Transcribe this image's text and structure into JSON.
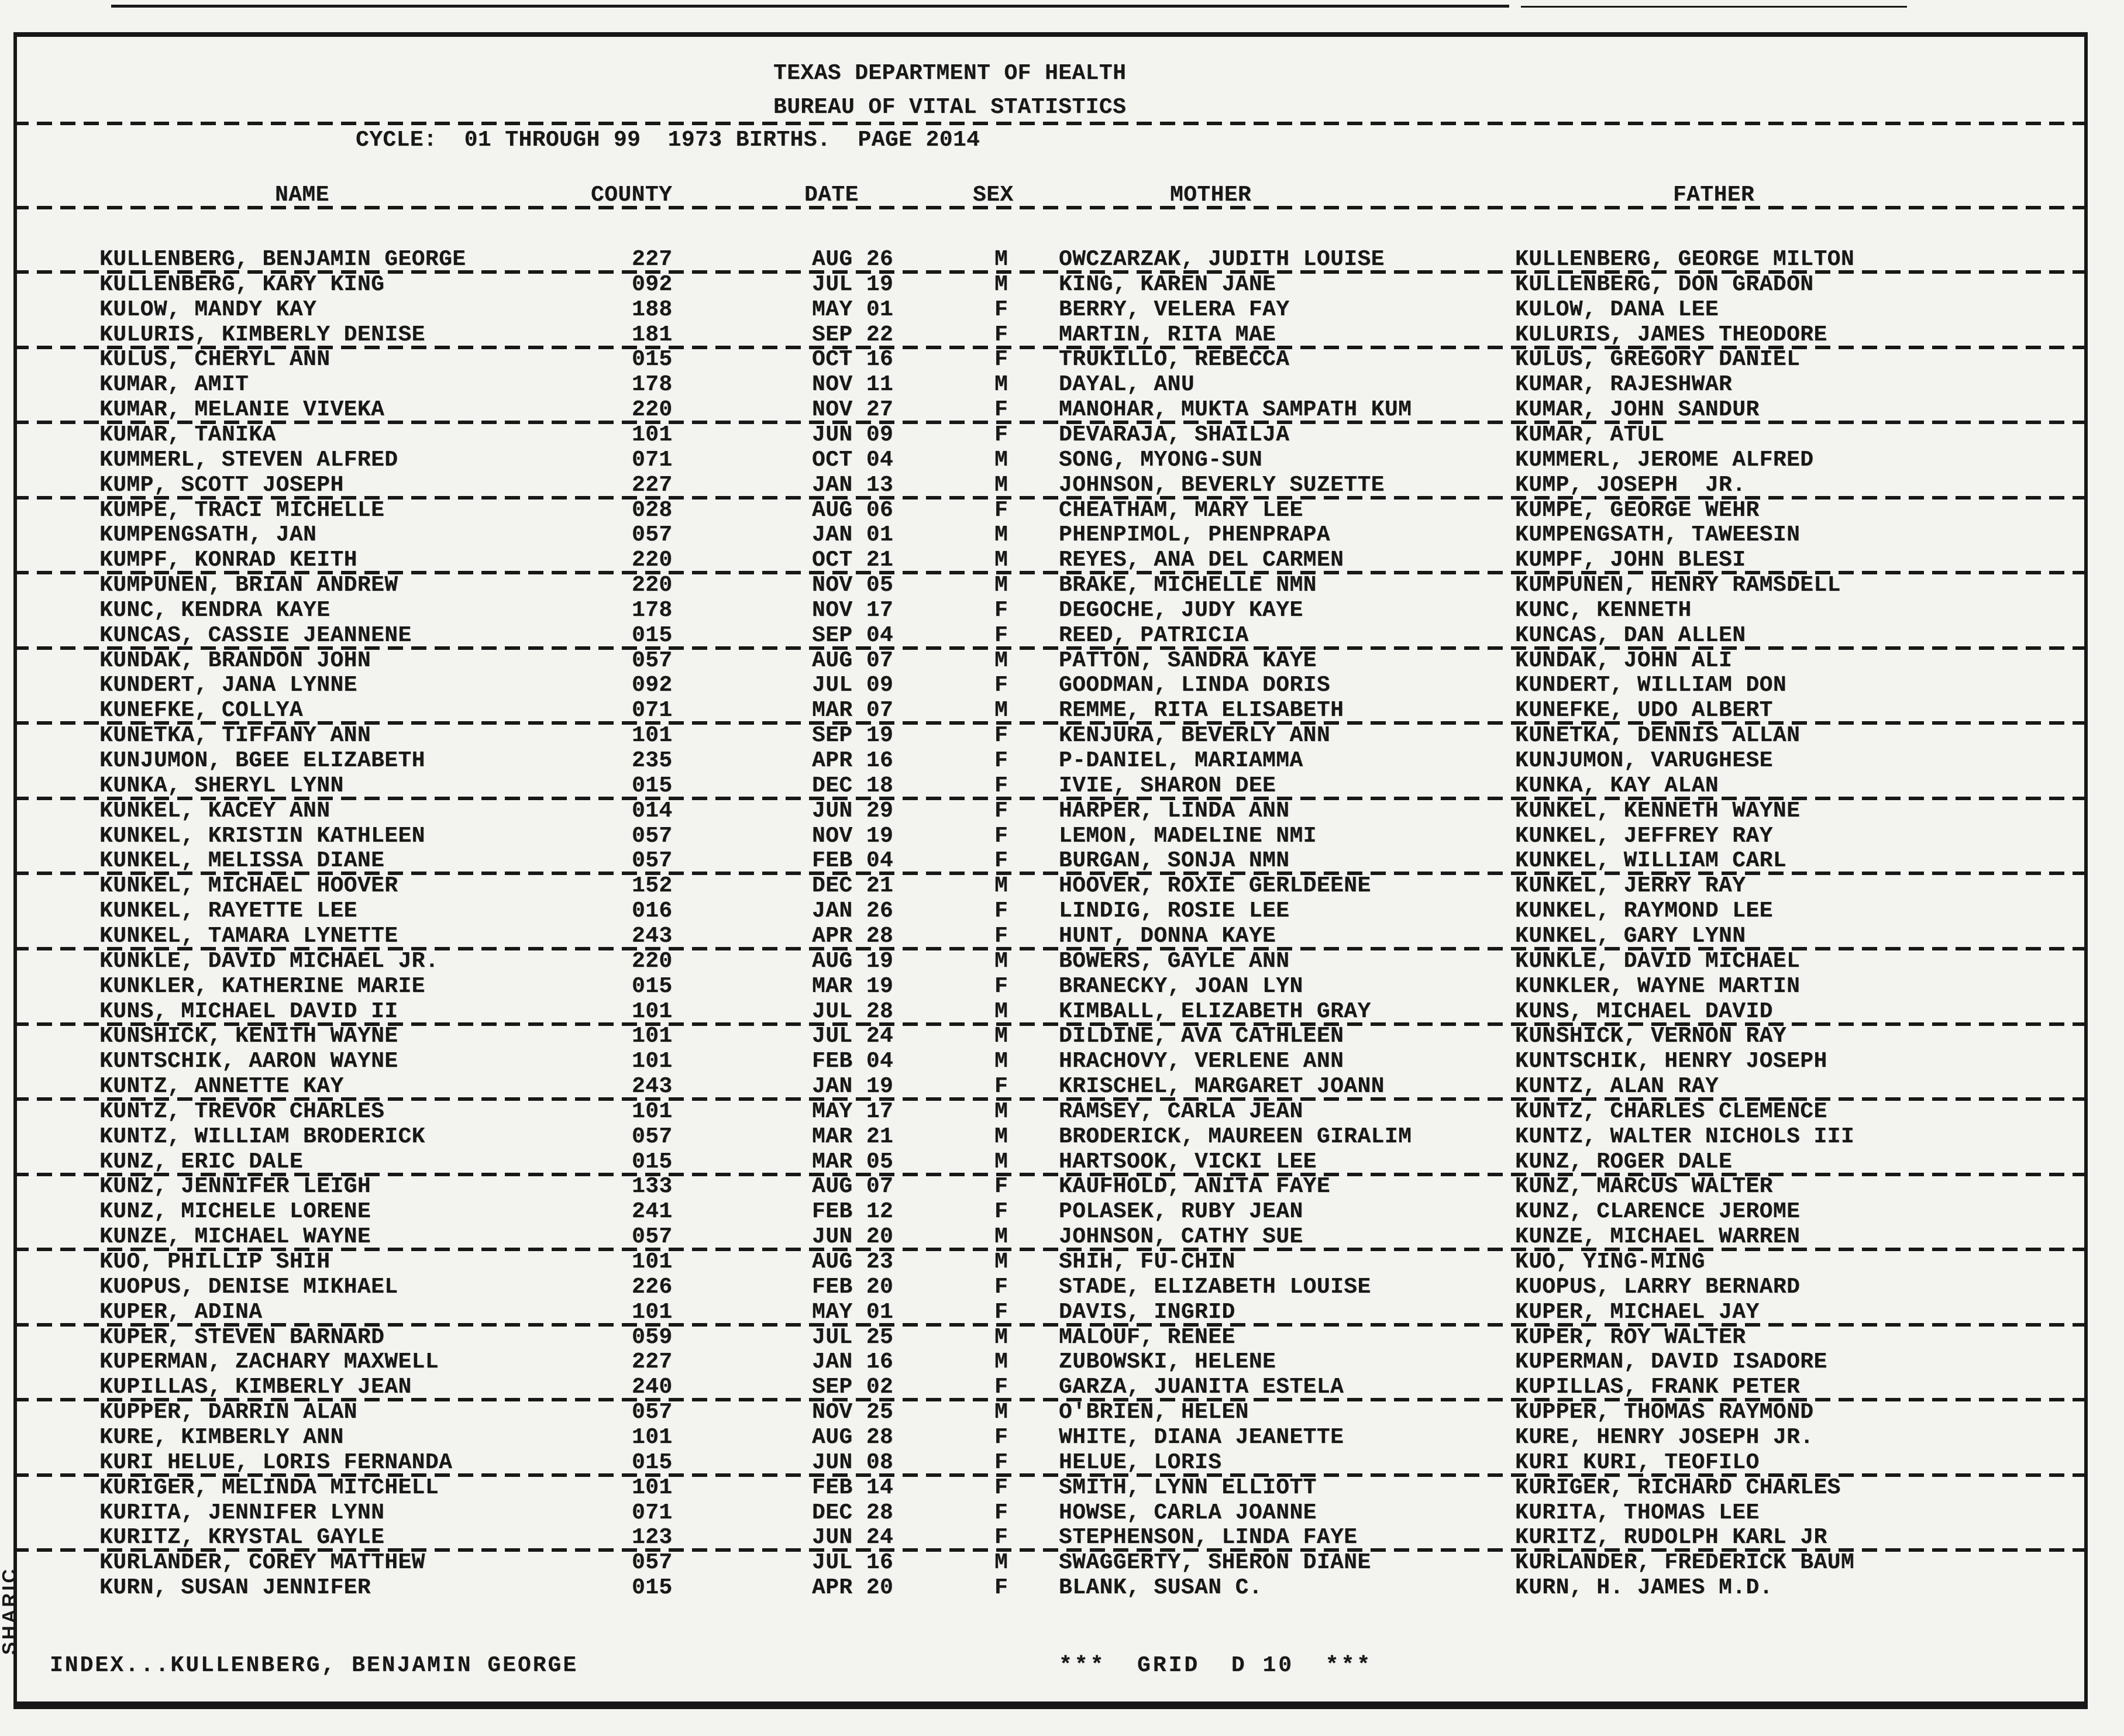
{
  "title_block": {
    "agency": "TEXAS DEPARTMENT OF HEALTH",
    "bureau": "BUREAU OF VITAL STATISTICS",
    "cycle_line": "CYCLE:  01 THROUGH 99  1973 BIRTHS.  PAGE 2014"
  },
  "columns": [
    "NAME",
    "COUNTY",
    "DATE",
    "SEX",
    "MOTHER",
    "FATHER"
  ],
  "table": {
    "rows": [
      {
        "name": "KULLENBERG, BENJAMIN GEORGE",
        "county": "227",
        "date": "AUG 26",
        "sex": "M",
        "mother": "OWCZARZAK, JUDITH LOUISE",
        "father": "KULLENBERG, GEORGE MILTON"
      },
      {
        "name": "KULLENBERG, KARY KING",
        "county": "092",
        "date": "JUL 19",
        "sex": "M",
        "mother": "KING, KAREN JANE",
        "father": "KULLENBERG, DON GRADON"
      },
      {
        "name": "KULOW, MANDY KAY",
        "county": "188",
        "date": "MAY 01",
        "sex": "F",
        "mother": "BERRY, VELERA FAY",
        "father": "KULOW, DANA LEE"
      },
      {
        "name": "KULURIS, KIMBERLY DENISE",
        "county": "181",
        "date": "SEP 22",
        "sex": "F",
        "mother": "MARTIN, RITA MAE",
        "father": "KULURIS, JAMES THEODORE"
      },
      {
        "name": "KULUS, CHERYL ANN",
        "county": "015",
        "date": "OCT 16",
        "sex": "F",
        "mother": "TRUKILLO, REBECCA",
        "father": "KULUS, GREGORY DANIEL"
      },
      {
        "name": "KUMAR, AMIT",
        "county": "178",
        "date": "NOV 11",
        "sex": "M",
        "mother": "DAYAL, ANU",
        "father": "KUMAR, RAJESHWAR"
      },
      {
        "name": "KUMAR, MELANIE VIVEKA",
        "county": "220",
        "date": "NOV 27",
        "sex": "F",
        "mother": "MANOHAR, MUKTA SAMPATH KUM",
        "father": "KUMAR, JOHN SANDUR"
      },
      {
        "name": "KUMAR, TANIKA",
        "county": "101",
        "date": "JUN 09",
        "sex": "F",
        "mother": "DEVARAJA, SHAILJA",
        "father": "KUMAR, ATUL"
      },
      {
        "name": "KUMMERL, STEVEN ALFRED",
        "county": "071",
        "date": "OCT 04",
        "sex": "M",
        "mother": "SONG, MYONG-SUN",
        "father": "KUMMERL, JEROME ALFRED"
      },
      {
        "name": "KUMP, SCOTT JOSEPH",
        "county": "227",
        "date": "JAN 13",
        "sex": "M",
        "mother": "JOHNSON, BEVERLY SUZETTE",
        "father": "KUMP, JOSEPH  JR."
      },
      {
        "name": "KUMPE, TRACI MICHELLE",
        "county": "028",
        "date": "AUG 06",
        "sex": "F",
        "mother": "CHEATHAM, MARY LEE",
        "father": "KUMPE, GEORGE WEHR"
      },
      {
        "name": "KUMPENGSATH, JAN",
        "county": "057",
        "date": "JAN 01",
        "sex": "M",
        "mother": "PHENPIMOL, PHENPRAPA",
        "father": "KUMPENGSATH, TAWEESIN"
      },
      {
        "name": "KUMPF, KONRAD KEITH",
        "county": "220",
        "date": "OCT 21",
        "sex": "M",
        "mother": "REYES, ANA DEL CARMEN",
        "father": "KUMPF, JOHN BLESI"
      },
      {
        "name": "KUMPUNEN, BRIAN ANDREW",
        "county": "220",
        "date": "NOV 05",
        "sex": "M",
        "mother": "BRAKE, MICHELLE NMN",
        "father": "KUMPUNEN, HENRY RAMSDELL"
      },
      {
        "name": "KUNC, KENDRA KAYE",
        "county": "178",
        "date": "NOV 17",
        "sex": "F",
        "mother": "DEGOCHE, JUDY KAYE",
        "father": "KUNC, KENNETH"
      },
      {
        "name": "KUNCAS, CASSIE JEANNENE",
        "county": "015",
        "date": "SEP 04",
        "sex": "F",
        "mother": "REED, PATRICIA",
        "father": "KUNCAS, DAN ALLEN"
      },
      {
        "name": "KUNDAK, BRANDON JOHN",
        "county": "057",
        "date": "AUG 07",
        "sex": "M",
        "mother": "PATTON, SANDRA KAYE",
        "father": "KUNDAK, JOHN ALI"
      },
      {
        "name": "KUNDERT, JANA LYNNE",
        "county": "092",
        "date": "JUL 09",
        "sex": "F",
        "mother": "GOODMAN, LINDA DORIS",
        "father": "KUNDERT, WILLIAM DON"
      },
      {
        "name": "KUNEFKE, COLLYA",
        "county": "071",
        "date": "MAR 07",
        "sex": "M",
        "mother": "REMME, RITA ELISABETH",
        "father": "KUNEFKE, UDO ALBERT"
      },
      {
        "name": "KUNETKA, TIFFANY ANN",
        "county": "101",
        "date": "SEP 19",
        "sex": "F",
        "mother": "KENJURA, BEVERLY ANN",
        "father": "KUNETKA, DENNIS ALLAN"
      },
      {
        "name": "KUNJUMON, BGEE ELIZABETH",
        "county": "235",
        "date": "APR 16",
        "sex": "F",
        "mother": "P-DANIEL, MARIAMMA",
        "father": "KUNJUMON, VARUGHESE"
      },
      {
        "name": "KUNKA, SHERYL LYNN",
        "county": "015",
        "date": "DEC 18",
        "sex": "F",
        "mother": "IVIE, SHARON DEE",
        "father": "KUNKA, KAY ALAN"
      },
      {
        "name": "KUNKEL, KACEY ANN",
        "county": "014",
        "date": "JUN 29",
        "sex": "F",
        "mother": "HARPER, LINDA ANN",
        "father": "KUNKEL, KENNETH WAYNE"
      },
      {
        "name": "KUNKEL, KRISTIN KATHLEEN",
        "county": "057",
        "date": "NOV 19",
        "sex": "F",
        "mother": "LEMON, MADELINE NMI",
        "father": "KUNKEL, JEFFREY RAY"
      },
      {
        "name": "KUNKEL, MELISSA DIANE",
        "county": "057",
        "date": "FEB 04",
        "sex": "F",
        "mother": "BURGAN, SONJA NMN",
        "father": "KUNKEL, WILLIAM CARL"
      },
      {
        "name": "KUNKEL, MICHAEL HOOVER",
        "county": "152",
        "date": "DEC 21",
        "sex": "M",
        "mother": "HOOVER, ROXIE GERLDEENE",
        "father": "KUNKEL, JERRY RAY"
      },
      {
        "name": "KUNKEL, RAYETTE LEE",
        "county": "016",
        "date": "JAN 26",
        "sex": "F",
        "mother": "LINDIG, ROSIE LEE",
        "father": "KUNKEL, RAYMOND LEE"
      },
      {
        "name": "KUNKEL, TAMARA LYNETTE",
        "county": "243",
        "date": "APR 28",
        "sex": "F",
        "mother": "HUNT, DONNA KAYE",
        "father": "KUNKEL, GARY LYNN"
      },
      {
        "name": "KUNKLE, DAVID MICHAEL JR.",
        "county": "220",
        "date": "AUG 19",
        "sex": "M",
        "mother": "BOWERS, GAYLE ANN",
        "father": "KUNKLE, DAVID MICHAEL"
      },
      {
        "name": "KUNKLER, KATHERINE MARIE",
        "county": "015",
        "date": "MAR 19",
        "sex": "F",
        "mother": "BRANECKY, JOAN LYN",
        "father": "KUNKLER, WAYNE MARTIN"
      },
      {
        "name": "KUNS, MICHAEL DAVID II",
        "county": "101",
        "date": "JUL 28",
        "sex": "M",
        "mother": "KIMBALL, ELIZABETH GRAY",
        "father": "KUNS, MICHAEL DAVID"
      },
      {
        "name": "KUNSHICK, KENITH WAYNE",
        "county": "101",
        "date": "JUL 24",
        "sex": "M",
        "mother": "DILDINE, AVA CATHLEEN",
        "father": "KUNSHICK, VERNON RAY"
      },
      {
        "name": "KUNTSCHIK, AARON WAYNE",
        "county": "101",
        "date": "FEB 04",
        "sex": "M",
        "mother": "HRACHOVY, VERLENE ANN",
        "father": "KUNTSCHIK, HENRY JOSEPH"
      },
      {
        "name": "KUNTZ, ANNETTE KAY",
        "county": "243",
        "date": "JAN 19",
        "sex": "F",
        "mother": "KRISCHEL, MARGARET JOANN",
        "father": "KUNTZ, ALAN RAY"
      },
      {
        "name": "KUNTZ, TREVOR CHARLES",
        "county": "101",
        "date": "MAY 17",
        "sex": "M",
        "mother": "RAMSEY, CARLA JEAN",
        "father": "KUNTZ, CHARLES CLEMENCE"
      },
      {
        "name": "KUNTZ, WILLIAM BRODERICK",
        "county": "057",
        "date": "MAR 21",
        "sex": "M",
        "mother": "BRODERICK, MAUREEN GIRALIM",
        "father": "KUNTZ, WALTER NICHOLS III"
      },
      {
        "name": "KUNZ, ERIC DALE",
        "county": "015",
        "date": "MAR 05",
        "sex": "M",
        "mother": "HARTSOOK, VICKI LEE",
        "father": "KUNZ, ROGER DALE"
      },
      {
        "name": "KUNZ, JENNIFER LEIGH",
        "county": "133",
        "date": "AUG 07",
        "sex": "F",
        "mother": "KAUFHOLD, ANITA FAYE",
        "father": "KUNZ, MARCUS WALTER"
      },
      {
        "name": "KUNZ, MICHELE LORENE",
        "county": "241",
        "date": "FEB 12",
        "sex": "F",
        "mother": "POLASEK, RUBY JEAN",
        "father": "KUNZ, CLARENCE JEROME"
      },
      {
        "name": "KUNZE, MICHAEL WAYNE",
        "county": "057",
        "date": "JUN 20",
        "sex": "M",
        "mother": "JOHNSON, CATHY SUE",
        "father": "KUNZE, MICHAEL WARREN"
      },
      {
        "name": "KUO, PHILLIP SHIH",
        "county": "101",
        "date": "AUG 23",
        "sex": "M",
        "mother": "SHIH, FU-CHIN",
        "father": "KUO, YING-MING"
      },
      {
        "name": "KUOPUS, DENISE MIKHAEL",
        "county": "226",
        "date": "FEB 20",
        "sex": "F",
        "mother": "STADE, ELIZABETH LOUISE",
        "father": "KUOPUS, LARRY BERNARD"
      },
      {
        "name": "KUPER, ADINA",
        "county": "101",
        "date": "MAY 01",
        "sex": "F",
        "mother": "DAVIS, INGRID",
        "father": "KUPER, MICHAEL JAY"
      },
      {
        "name": "KUPER, STEVEN BARNARD",
        "county": "059",
        "date": "JUL 25",
        "sex": "M",
        "mother": "MALOUF, RENEE",
        "father": "KUPER, ROY WALTER"
      },
      {
        "name": "KUPERMAN, ZACHARY MAXWELL",
        "county": "227",
        "date": "JAN 16",
        "sex": "M",
        "mother": "ZUBOWSKI, HELENE",
        "father": "KUPERMAN, DAVID ISADORE"
      },
      {
        "name": "KUPILLAS, KIMBERLY JEAN",
        "county": "240",
        "date": "SEP 02",
        "sex": "F",
        "mother": "GARZA, JUANITA ESTELA",
        "father": "KUPILLAS, FRANK PETER"
      },
      {
        "name": "KUPPER, DARRIN ALAN",
        "county": "057",
        "date": "NOV 25",
        "sex": "M",
        "mother": "O'BRIEN, HELEN",
        "father": "KUPPER, THOMAS RAYMOND"
      },
      {
        "name": "KURE, KIMBERLY ANN",
        "county": "101",
        "date": "AUG 28",
        "sex": "F",
        "mother": "WHITE, DIANA JEANETTE",
        "father": "KURE, HENRY JOSEPH JR."
      },
      {
        "name": "KURI HELUE, LORIS FERNANDA",
        "county": "015",
        "date": "JUN 08",
        "sex": "F",
        "mother": "HELUE, LORIS",
        "father": "KURI KURI, TEOFILO"
      },
      {
        "name": "KURIGER, MELINDA MITCHELL",
        "county": "101",
        "date": "FEB 14",
        "sex": "F",
        "mother": "SMITH, LYNN ELLIOTT",
        "father": "KURIGER, RICHARD CHARLES"
      },
      {
        "name": "KURITA, JENNIFER LYNN",
        "county": "071",
        "date": "DEC 28",
        "sex": "F",
        "mother": "HOWSE, CARLA JOANNE",
        "father": "KURITA, THOMAS LEE"
      },
      {
        "name": "KURITZ, KRYSTAL GAYLE",
        "county": "123",
        "date": "JUN 24",
        "sex": "F",
        "mother": "STEPHENSON, LINDA FAYE",
        "father": "KURITZ, RUDOLPH KARL JR"
      },
      {
        "name": "KURLANDER, COREY MATTHEW",
        "county": "057",
        "date": "JUL 16",
        "sex": "M",
        "mother": "SWAGGERTY, SHERON DIANE",
        "father": "KURLANDER, FREDERICK BAUM"
      },
      {
        "name": "KURN, SUSAN JENNIFER",
        "county": "015",
        "date": "APR 20",
        "sex": "F",
        "mother": "BLANK, SUSAN C.",
        "father": "KURN, H. JAMES M.D."
      }
    ]
  },
  "footer": {
    "index_line": "INDEX...KULLENBERG, BENJAMIN GEORGE",
    "grid_line": "***  GRID  D 10  ***"
  },
  "side_label": "SHARIC",
  "colors": {
    "paper": "#f3f3f0",
    "ink": "#181818"
  }
}
